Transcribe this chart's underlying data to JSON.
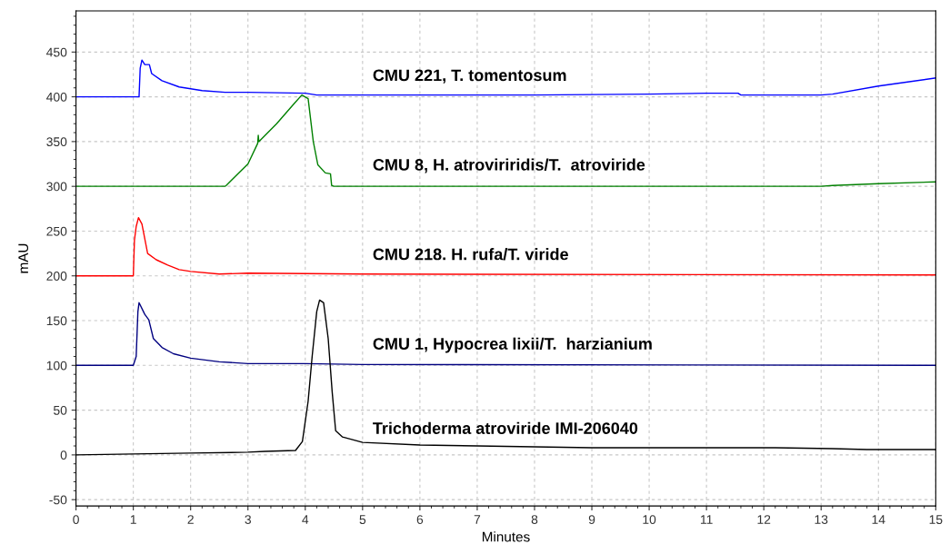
{
  "chart_data": {
    "type": "line",
    "xlabel": "Minutes",
    "ylabel": "mAU",
    "xlim": [
      0,
      15
    ],
    "xticks": [
      0,
      1,
      2,
      3,
      4,
      5,
      6,
      7,
      8,
      9,
      10,
      11,
      12,
      13,
      14,
      15
    ],
    "ylim": [
      -57,
      496
    ],
    "yticks": [
      -50,
      0,
      50,
      100,
      150,
      200,
      250,
      300,
      350,
      400,
      450
    ],
    "grid": true,
    "legend": false,
    "marker": "none",
    "line_style": "solid",
    "series": [
      {
        "name": "CMU 221, T. tomentosum",
        "color": "#0000ff",
        "x": [
          0,
          1.1,
          1.12,
          1.15,
          1.2,
          1.28,
          1.32,
          1.5,
          1.8,
          2.2,
          2.6,
          3.0,
          4.0,
          4.2,
          5,
          6,
          8,
          10,
          11,
          11.55,
          11.6,
          13,
          13.2,
          14,
          15
        ],
        "values": [
          400,
          400,
          432,
          441,
          436,
          436,
          426,
          418,
          411,
          407,
          405,
          405,
          404,
          402,
          402,
          402,
          402,
          403,
          404,
          404,
          402,
          402,
          403,
          412,
          421
        ]
      },
      {
        "name": "CMU 8, H. atroviriridis/T.  atroviride",
        "color": "#008000",
        "x": [
          0,
          2.6,
          2.62,
          3.0,
          3.17,
          3.18,
          3.19,
          3.5,
          3.8,
          3.94,
          4.05,
          4.14,
          4.22,
          4.35,
          4.44,
          4.46,
          4.5,
          5,
          12,
          13,
          13.2,
          14,
          15
        ],
        "values": [
          300,
          300,
          301,
          325,
          348,
          357,
          350,
          370,
          392,
          402,
          398,
          350,
          324,
          315,
          314,
          301,
          300,
          300,
          300,
          300,
          301,
          303,
          305
        ]
      },
      {
        "name": "CMU 218. H. rufa/T. viride",
        "color": "#ff0000",
        "x": [
          0,
          1.0,
          1.02,
          1.05,
          1.09,
          1.15,
          1.25,
          1.4,
          1.6,
          1.8,
          2.0,
          2.5,
          3,
          5,
          15
        ],
        "values": [
          200,
          200,
          240,
          255,
          265,
          258,
          225,
          218,
          212,
          207,
          205,
          202,
          203,
          202,
          201
        ]
      },
      {
        "name": "CMU 1, Hypocrea lixii/T.  harzianium",
        "color": "#000080",
        "x": [
          0,
          1.0,
          1.05,
          1.08,
          1.1,
          1.2,
          1.27,
          1.35,
          1.5,
          1.7,
          2,
          2.5,
          3,
          4,
          5,
          15
        ],
        "values": [
          100,
          100,
          110,
          160,
          170,
          157,
          151,
          130,
          120,
          113,
          108,
          104,
          102,
          102,
          101,
          100
        ]
      },
      {
        "name": "Trichoderma atroviride IMI-206040",
        "color": "#000000",
        "x": [
          0,
          1,
          2,
          3,
          3.3,
          3.83,
          3.95,
          4.05,
          4.12,
          4.2,
          4.25,
          4.32,
          4.4,
          4.47,
          4.53,
          4.65,
          5,
          6,
          7,
          8,
          9,
          10,
          11,
          12,
          12.2,
          13.2,
          13.8,
          15
        ],
        "values": [
          0,
          1,
          2,
          3,
          4,
          5,
          15,
          60,
          110,
          160,
          173,
          170,
          130,
          70,
          27,
          20,
          14,
          11,
          10,
          9,
          8,
          8,
          8,
          8,
          8,
          7,
          6,
          6
        ]
      }
    ]
  }
}
